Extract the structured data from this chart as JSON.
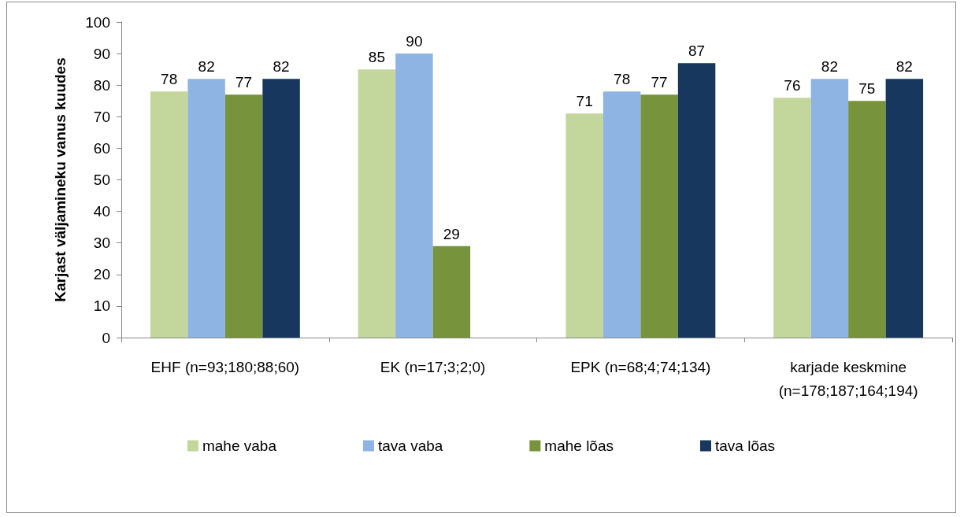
{
  "chart_data": {
    "type": "bar",
    "ylabel": "Karjast väljamineku vanus kuudes",
    "categories": [
      "EHF (n=93;180;88;60)",
      "EK (n=17;3;2;0)",
      "EPK (n=68;4;74;134)",
      "karjade keskmine\n(n=178;187;164;194)"
    ],
    "series": [
      {
        "name": "mahe vaba",
        "color": "#c3d69b",
        "values": [
          78,
          85,
          71,
          76
        ]
      },
      {
        "name": "tava vaba",
        "color": "#8eb4e3",
        "values": [
          82,
          90,
          78,
          82
        ]
      },
      {
        "name": "mahe lõas",
        "color": "#77933c",
        "values": [
          77,
          29,
          77,
          75
        ]
      },
      {
        "name": "tava lõas",
        "color": "#17375e",
        "values": [
          82,
          null,
          87,
          82
        ]
      }
    ],
    "ylim": [
      0,
      100
    ],
    "yticks": [
      0,
      10,
      20,
      30,
      40,
      50,
      60,
      70,
      80,
      90,
      100
    ],
    "grid": false,
    "legend": "bottom",
    "data_labels": true
  }
}
